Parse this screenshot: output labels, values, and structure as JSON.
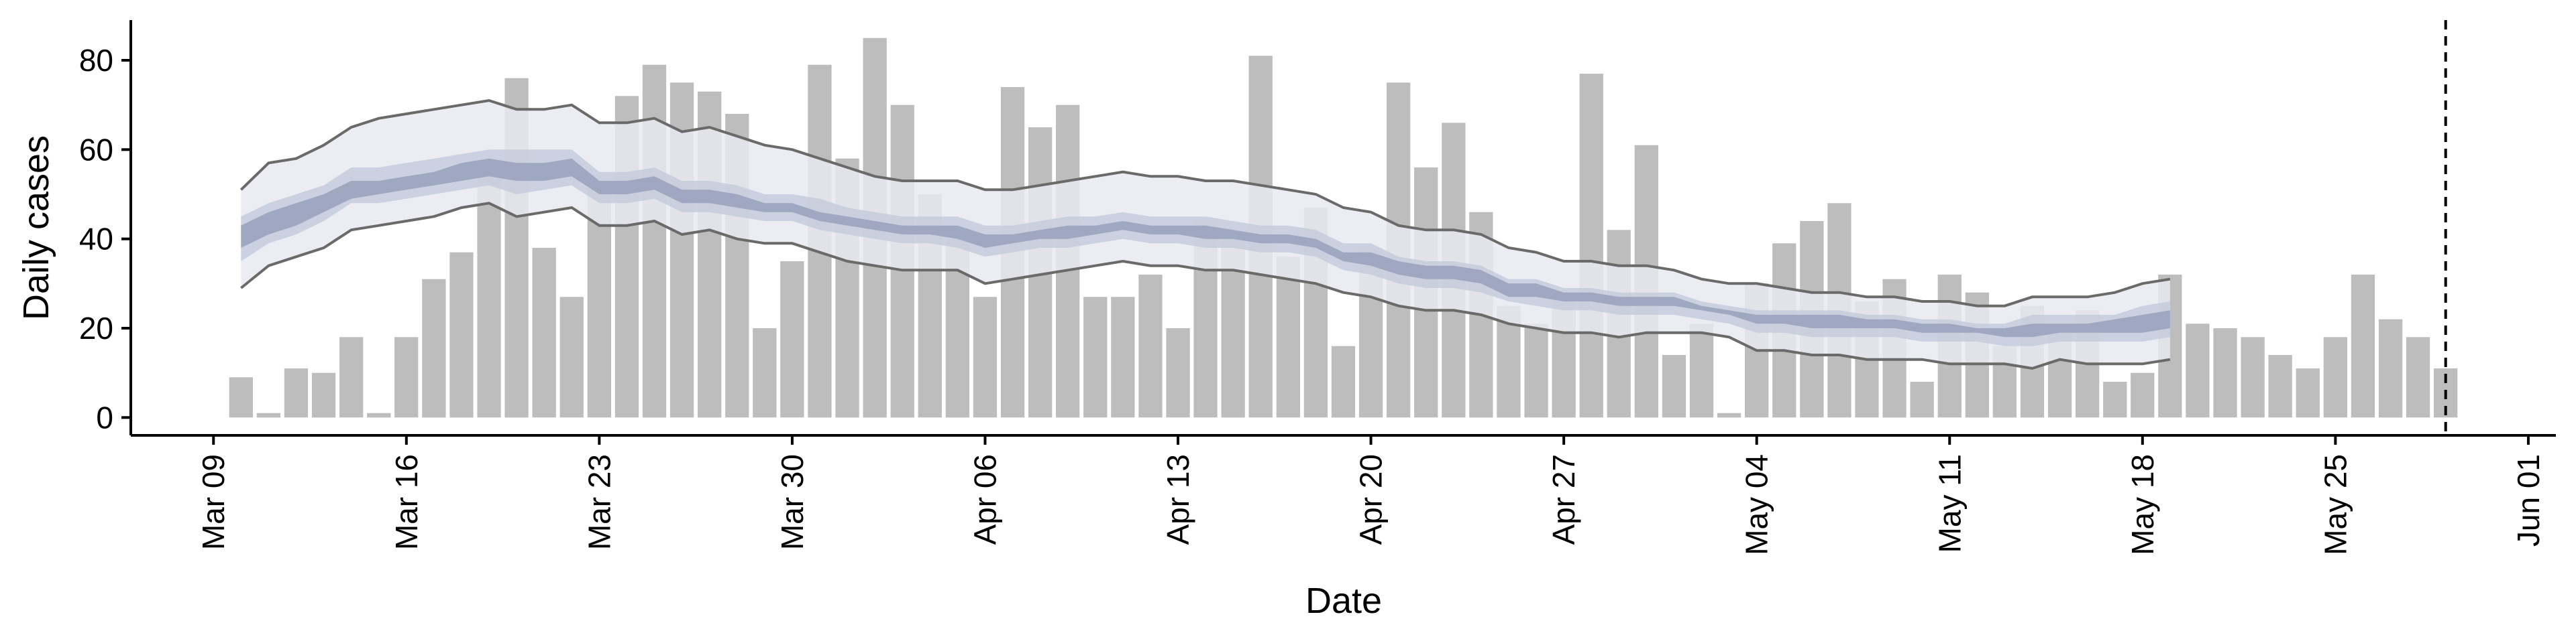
{
  "chart_data": {
    "type": "bar",
    "xlabel": "Date",
    "ylabel": "Daily cases",
    "x_range": [
      "2020-03-06",
      "2020-06-02"
    ],
    "ylim": [
      -4,
      89
    ],
    "y_ticks": [
      0,
      20,
      40,
      60,
      80
    ],
    "x_ticks": [
      {
        "date": "2020-03-09",
        "label": "Mar 09"
      },
      {
        "date": "2020-03-16",
        "label": "Mar 16"
      },
      {
        "date": "2020-03-23",
        "label": "Mar 23"
      },
      {
        "date": "2020-03-30",
        "label": "Mar 30"
      },
      {
        "date": "2020-04-06",
        "label": "Apr 06"
      },
      {
        "date": "2020-04-13",
        "label": "Apr 13"
      },
      {
        "date": "2020-04-20",
        "label": "Apr 20"
      },
      {
        "date": "2020-04-27",
        "label": "Apr 27"
      },
      {
        "date": "2020-05-04",
        "label": "May 04"
      },
      {
        "date": "2020-05-11",
        "label": "May 11"
      },
      {
        "date": "2020-05-18",
        "label": "May 18"
      },
      {
        "date": "2020-05-25",
        "label": "May 25"
      },
      {
        "date": "2020-06-01",
        "label": "Jun 01"
      }
    ],
    "grid": false,
    "vline_date": "2020-05-29",
    "colors": {
      "bars": "#bdbdbd",
      "outer_band": "#e8eaf1",
      "inner_band": "#c5cbdc",
      "core_band": "#98a1bb",
      "ci_lines": "#6a6a6a",
      "vline": "#000000"
    },
    "bars": {
      "x": [
        "2020-03-10",
        "2020-03-11",
        "2020-03-12",
        "2020-03-13",
        "2020-03-14",
        "2020-03-15",
        "2020-03-16",
        "2020-03-17",
        "2020-03-18",
        "2020-03-19",
        "2020-03-20",
        "2020-03-21",
        "2020-03-22",
        "2020-03-23",
        "2020-03-24",
        "2020-03-25",
        "2020-03-26",
        "2020-03-27",
        "2020-03-28",
        "2020-03-29",
        "2020-03-30",
        "2020-03-31",
        "2020-04-01",
        "2020-04-02",
        "2020-04-03",
        "2020-04-04",
        "2020-04-05",
        "2020-04-06",
        "2020-04-07",
        "2020-04-08",
        "2020-04-09",
        "2020-04-10",
        "2020-04-11",
        "2020-04-12",
        "2020-04-13",
        "2020-04-14",
        "2020-04-15",
        "2020-04-16",
        "2020-04-17",
        "2020-04-18",
        "2020-04-19",
        "2020-04-20",
        "2020-04-21",
        "2020-04-22",
        "2020-04-23",
        "2020-04-24",
        "2020-04-25",
        "2020-04-26",
        "2020-04-27",
        "2020-04-28",
        "2020-04-29",
        "2020-04-30",
        "2020-05-01",
        "2020-05-02",
        "2020-05-03",
        "2020-05-04",
        "2020-05-05",
        "2020-05-06",
        "2020-05-07",
        "2020-05-08",
        "2020-05-09",
        "2020-05-10",
        "2020-05-11",
        "2020-05-12",
        "2020-05-13",
        "2020-05-14",
        "2020-05-15",
        "2020-05-16",
        "2020-05-17",
        "2020-05-18",
        "2020-05-19",
        "2020-05-20",
        "2020-05-21",
        "2020-05-22",
        "2020-05-23",
        "2020-05-24",
        "2020-05-25",
        "2020-05-26",
        "2020-05-27",
        "2020-05-28",
        "2020-05-29"
      ],
      "values": [
        9,
        1,
        11,
        10,
        18,
        1,
        18,
        31,
        37,
        54,
        76,
        38,
        27,
        51,
        72,
        79,
        75,
        73,
        68,
        20,
        35,
        79,
        58,
        85,
        70,
        50,
        40,
        27,
        74,
        65,
        70,
        27,
        27,
        32,
        20,
        44,
        40,
        81,
        36,
        47,
        16,
        38,
        75,
        56,
        66,
        46,
        25,
        21,
        28,
        77,
        42,
        61,
        14,
        21,
        1,
        30,
        39,
        44,
        48,
        26,
        31,
        8,
        32,
        28,
        16,
        25,
        21,
        24,
        8,
        10,
        32,
        21,
        20,
        18,
        14,
        11,
        18,
        32,
        22,
        18,
        11
      ]
    },
    "estimate": {
      "x": [
        "2020-03-10",
        "2020-03-11",
        "2020-03-12",
        "2020-03-13",
        "2020-03-14",
        "2020-03-15",
        "2020-03-16",
        "2020-03-17",
        "2020-03-18",
        "2020-03-19",
        "2020-03-20",
        "2020-03-21",
        "2020-03-22",
        "2020-03-23",
        "2020-03-24",
        "2020-03-25",
        "2020-03-26",
        "2020-03-27",
        "2020-03-28",
        "2020-03-29",
        "2020-03-30",
        "2020-03-31",
        "2020-04-01",
        "2020-04-02",
        "2020-04-03",
        "2020-04-04",
        "2020-04-05",
        "2020-04-06",
        "2020-04-07",
        "2020-04-08",
        "2020-04-09",
        "2020-04-10",
        "2020-04-11",
        "2020-04-12",
        "2020-04-13",
        "2020-04-14",
        "2020-04-15",
        "2020-04-16",
        "2020-04-17",
        "2020-04-18",
        "2020-04-19",
        "2020-04-20",
        "2020-04-21",
        "2020-04-22",
        "2020-04-23",
        "2020-04-24",
        "2020-04-25",
        "2020-04-26",
        "2020-04-27",
        "2020-04-28",
        "2020-04-29",
        "2020-04-30",
        "2020-05-01",
        "2020-05-02",
        "2020-05-03",
        "2020-05-04",
        "2020-05-05",
        "2020-05-06",
        "2020-05-07",
        "2020-05-08",
        "2020-05-09",
        "2020-05-10",
        "2020-05-11",
        "2020-05-12",
        "2020-05-13",
        "2020-05-14",
        "2020-05-15",
        "2020-05-16",
        "2020-05-17",
        "2020-05-18",
        "2020-05-19"
      ],
      "outer_upper": [
        51,
        57,
        58,
        61,
        65,
        67,
        68,
        69,
        70,
        71,
        69,
        69,
        70,
        66,
        66,
        67,
        64,
        65,
        63,
        61,
        60,
        58,
        56,
        54,
        53,
        53,
        53,
        51,
        51,
        52,
        53,
        54,
        55,
        54,
        54,
        53,
        53,
        52,
        51,
        50,
        47,
        46,
        43,
        42,
        42,
        41,
        38,
        37,
        35,
        35,
        34,
        34,
        33,
        31,
        30,
        30,
        29,
        28,
        28,
        27,
        27,
        26,
        26,
        25,
        25,
        27,
        27,
        27,
        28,
        30,
        31
      ],
      "outer_lower": [
        29,
        34,
        36,
        38,
        42,
        43,
        44,
        45,
        47,
        48,
        45,
        46,
        47,
        43,
        43,
        44,
        41,
        42,
        40,
        39,
        39,
        37,
        35,
        34,
        33,
        33,
        33,
        30,
        31,
        32,
        33,
        34,
        35,
        34,
        34,
        33,
        33,
        32,
        31,
        30,
        28,
        27,
        25,
        24,
        24,
        23,
        21,
        20,
        19,
        19,
        18,
        19,
        19,
        19,
        18,
        15,
        15,
        14,
        14,
        13,
        13,
        13,
        12,
        12,
        12,
        11,
        13,
        12,
        12,
        12,
        13
      ],
      "inner_upper": [
        45,
        48,
        50,
        52,
        56,
        56,
        57,
        58,
        59,
        60,
        60,
        60,
        60,
        55,
        55,
        56,
        53,
        53,
        52,
        50,
        50,
        49,
        47,
        46,
        45,
        45,
        45,
        43,
        43,
        44,
        45,
        45,
        46,
        45,
        45,
        45,
        44,
        43,
        43,
        42,
        39,
        39,
        36,
        35,
        35,
        34,
        31,
        31,
        29,
        29,
        28,
        28,
        28,
        26,
        25,
        24,
        24,
        24,
        24,
        23,
        23,
        22,
        22,
        21,
        21,
        23,
        23,
        23,
        23,
        25,
        26
      ],
      "inner_lower": [
        35,
        39,
        41,
        44,
        48,
        48,
        49,
        50,
        51,
        52,
        50,
        51,
        52,
        48,
        48,
        49,
        46,
        46,
        45,
        44,
        44,
        42,
        41,
        40,
        39,
        39,
        38,
        36,
        37,
        38,
        38,
        39,
        40,
        39,
        39,
        38,
        38,
        37,
        37,
        36,
        33,
        32,
        30,
        29,
        29,
        28,
        26,
        25,
        24,
        24,
        23,
        23,
        23,
        22,
        21,
        19,
        19,
        18,
        18,
        18,
        18,
        17,
        17,
        17,
        16,
        16,
        17,
        17,
        17,
        17,
        18
      ],
      "core_upper": [
        43,
        46,
        48,
        50,
        53,
        53,
        54,
        55,
        57,
        58,
        57,
        57,
        58,
        53,
        53,
        54,
        51,
        51,
        50,
        48,
        48,
        46,
        45,
        44,
        43,
        43,
        43,
        41,
        41,
        42,
        43,
        43,
        44,
        43,
        43,
        43,
        42,
        41,
        41,
        40,
        37,
        37,
        35,
        34,
        34,
        33,
        30,
        30,
        28,
        28,
        27,
        27,
        27,
        25,
        24,
        23,
        23,
        23,
        23,
        22,
        22,
        21,
        21,
        20,
        20,
        21,
        21,
        21,
        22,
        23,
        24
      ],
      "core_lower": [
        38,
        41,
        43,
        46,
        49,
        50,
        51,
        52,
        53,
        54,
        53,
        53,
        54,
        50,
        50,
        51,
        48,
        48,
        47,
        46,
        46,
        44,
        43,
        42,
        41,
        41,
        40,
        38,
        39,
        40,
        40,
        41,
        42,
        41,
        41,
        40,
        40,
        39,
        39,
        38,
        35,
        34,
        32,
        31,
        31,
        30,
        27,
        27,
        26,
        26,
        25,
        25,
        25,
        24,
        23,
        21,
        21,
        20,
        20,
        20,
        20,
        19,
        19,
        19,
        18,
        18,
        19,
        19,
        19,
        19,
        20
      ]
    }
  }
}
